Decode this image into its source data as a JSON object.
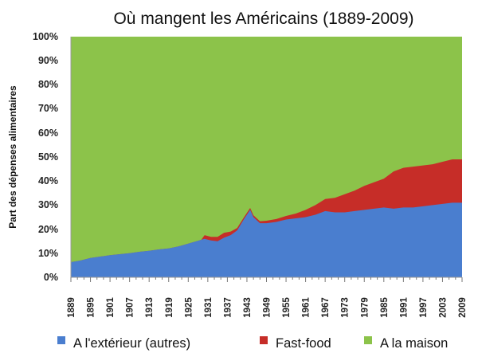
{
  "chart_data": {
    "type": "area",
    "stacked": true,
    "title": "Où mangent les Américains (1889-2009)",
    "xlabel": "",
    "ylabel": "Part des dépenses alimentaires",
    "xlim": [
      1889,
      2009
    ],
    "ylim": [
      0,
      100
    ],
    "y_tick_labels": [
      "0%",
      "10%",
      "20%",
      "30%",
      "40%",
      "50%",
      "60%",
      "70%",
      "80%",
      "90%",
      "100%"
    ],
    "x_tick_labels": [
      "1889",
      "1895",
      "1901",
      "1907",
      "1913",
      "1919",
      "1925",
      "1931",
      "1937",
      "1943",
      "1949",
      "1955",
      "1961",
      "1967",
      "1973",
      "1979",
      "1985",
      "1991",
      "1997",
      "2003",
      "2009"
    ],
    "grid": false,
    "legend_position": "bottom",
    "series": [
      {
        "name": "A l'extérieur (autres)",
        "color": "#4a7ecf",
        "points": [
          [
            1889,
            6.3
          ],
          [
            1892,
            7.0
          ],
          [
            1895,
            8.0
          ],
          [
            1898,
            8.6
          ],
          [
            1901,
            9.2
          ],
          [
            1904,
            9.6
          ],
          [
            1907,
            10.0
          ],
          [
            1910,
            10.6
          ],
          [
            1913,
            11.0
          ],
          [
            1916,
            11.6
          ],
          [
            1919,
            12.0
          ],
          [
            1922,
            12.8
          ],
          [
            1925,
            14.0
          ],
          [
            1928,
            15.2
          ],
          [
            1930,
            16.0
          ],
          [
            1932,
            15.3
          ],
          [
            1934,
            15.0
          ],
          [
            1936,
            16.5
          ],
          [
            1938,
            17.5
          ],
          [
            1940,
            19.5
          ],
          [
            1942,
            24.0
          ],
          [
            1944,
            28.0
          ],
          [
            1945,
            25.0
          ],
          [
            1947,
            22.5
          ],
          [
            1949,
            22.5
          ],
          [
            1952,
            23.0
          ],
          [
            1955,
            24.0
          ],
          [
            1958,
            24.5
          ],
          [
            1961,
            25.0
          ],
          [
            1964,
            26.0
          ],
          [
            1967,
            27.5
          ],
          [
            1970,
            27.0
          ],
          [
            1973,
            27.0
          ],
          [
            1976,
            27.5
          ],
          [
            1979,
            28.0
          ],
          [
            1982,
            28.5
          ],
          [
            1985,
            29.0
          ],
          [
            1988,
            28.5
          ],
          [
            1991,
            29.0
          ],
          [
            1994,
            29.0
          ],
          [
            1997,
            29.5
          ],
          [
            2000,
            30.0
          ],
          [
            2003,
            30.5
          ],
          [
            2006,
            31.0
          ],
          [
            2009,
            31.0
          ]
        ]
      },
      {
        "name": "Fast-food",
        "color": "#c62d28",
        "points": [
          [
            1889,
            0
          ],
          [
            1929,
            0
          ],
          [
            1930,
            1.5
          ],
          [
            1932,
            1.5
          ],
          [
            1934,
            1.8
          ],
          [
            1936,
            2.0
          ],
          [
            1938,
            1.5
          ],
          [
            1940,
            1.0
          ],
          [
            1942,
            0.8
          ],
          [
            1944,
            0.8
          ],
          [
            1945,
            0.8
          ],
          [
            1947,
            0.8
          ],
          [
            1949,
            1.0
          ],
          [
            1952,
            1.2
          ],
          [
            1955,
            1.5
          ],
          [
            1958,
            2.0
          ],
          [
            1961,
            3.0
          ],
          [
            1964,
            4.0
          ],
          [
            1967,
            5.0
          ],
          [
            1970,
            6.0
          ],
          [
            1973,
            7.5
          ],
          [
            1976,
            8.5
          ],
          [
            1979,
            10.0
          ],
          [
            1982,
            11.0
          ],
          [
            1985,
            12.0
          ],
          [
            1988,
            15.5
          ],
          [
            1991,
            16.5
          ],
          [
            1994,
            17.0
          ],
          [
            1997,
            17.0
          ],
          [
            2000,
            17.0
          ],
          [
            2003,
            17.5
          ],
          [
            2006,
            18.0
          ],
          [
            2009,
            18.0
          ]
        ]
      },
      {
        "name": "A la maison",
        "color": "#8cc34a",
        "points": "remainder to 100%"
      }
    ]
  }
}
